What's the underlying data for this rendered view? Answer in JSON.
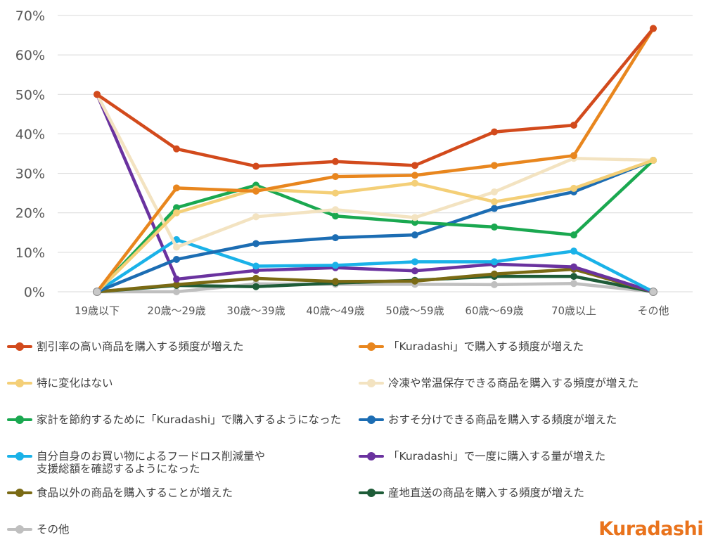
{
  "chart_data": {
    "type": "line",
    "categories": [
      "19歳以下",
      "20歳～29歳",
      "30歳～39歳",
      "40歳～49歳",
      "50歳～59歳",
      "60歳～69歳",
      "70歳以上",
      "その他"
    ],
    "ylim": [
      0,
      70
    ],
    "yticks": [
      "0%",
      "10%",
      "20%",
      "30%",
      "40%",
      "50%",
      "60%",
      "70%"
    ],
    "grid": true,
    "legend_placement": "bottom",
    "series": [
      {
        "name": "割引率の高い商品を購入する頻度が増えた",
        "color": "#d24a1c",
        "values": [
          50,
          36.2,
          31.8,
          33,
          32,
          40.5,
          42.2,
          66.7
        ]
      },
      {
        "name": "「Kuradashi」で購入する頻度が増えた",
        "color": "#e8861e",
        "values": [
          0,
          26.3,
          25.5,
          29.2,
          29.5,
          32,
          34.5,
          66.7
        ]
      },
      {
        "name": "特に変化はない",
        "color": "#f4cf77",
        "values": [
          0,
          20,
          26,
          25,
          27.5,
          22.8,
          26.2,
          33.3
        ]
      },
      {
        "name": "冷凍や常温保存できる商品を購入する頻度が増えた",
        "color": "#f3e3c1",
        "values": [
          50,
          11.3,
          19,
          20.8,
          18.8,
          25.3,
          33.8,
          33.3
        ]
      },
      {
        "name": "家計を節約するために「Kuradashi」で購入するようになった",
        "color": "#1aa850",
        "values": [
          0,
          21.3,
          27,
          19.2,
          17.6,
          16.4,
          14.4,
          33.3
        ]
      },
      {
        "name": "おすそ分けできる商品を購入する頻度が増えた",
        "color": "#1c6db3",
        "values": [
          0,
          8.2,
          12.2,
          13.7,
          14.4,
          21.1,
          25.3,
          33.3
        ]
      },
      {
        "name": "自分自身のお買い物によるフードロス削減量や\n支援総額を確認するようになった",
        "color": "#1ab2e8",
        "values": [
          0,
          13.2,
          6.5,
          6.7,
          7.6,
          7.6,
          10.3,
          0
        ]
      },
      {
        "name": "「Kuradashi」で一度に購入する量が増えた",
        "color": "#6a329f",
        "values": [
          50,
          3.2,
          5.4,
          6.1,
          5.3,
          7.0,
          6.3,
          0
        ]
      },
      {
        "name": "食品以外の商品を購入することが増えた",
        "color": "#7a6a14",
        "values": [
          0,
          1.8,
          3.4,
          2.6,
          2.7,
          4.5,
          5.7,
          0
        ]
      },
      {
        "name": "産地直送の商品を購入する頻度が増えた",
        "color": "#1e5c38",
        "values": [
          0,
          1.6,
          1.3,
          2.2,
          2.9,
          3.9,
          3.9,
          0
        ]
      },
      {
        "name": "その他",
        "color": "#bfbfbf",
        "values": [
          0,
          0,
          2.0,
          1.9,
          1.9,
          1.8,
          2.1,
          0
        ]
      }
    ]
  },
  "logo_text": "Kuradashi"
}
